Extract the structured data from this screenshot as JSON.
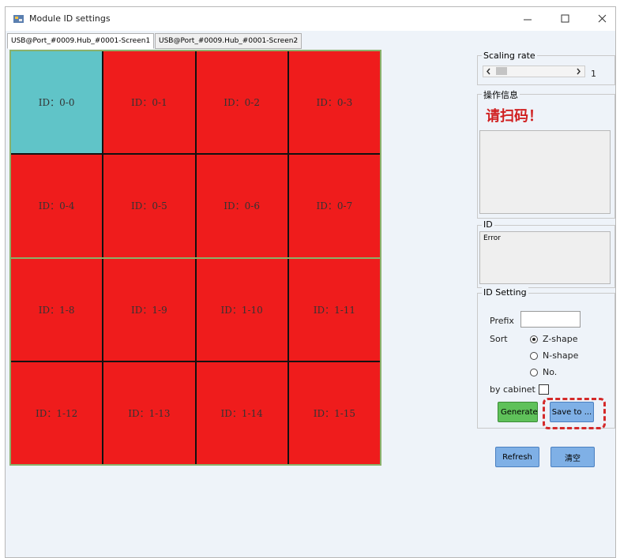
{
  "window": {
    "title": "Module ID settings"
  },
  "tabs": {
    "items": [
      "USB@Port_#0009.Hub_#0001-Screen1",
      "USB@Port_#0009.Hub_#0001-Screen2"
    ],
    "active": 0
  },
  "grid": {
    "columns": 4,
    "selected_cell": 0,
    "cells": [
      "ID：0-0",
      "ID：0-1",
      "ID：0-2",
      "ID：0-3",
      "ID：0-4",
      "ID：0-5",
      "ID：0-6",
      "ID：0-7",
      "ID：1-8",
      "ID：1-9",
      "ID：1-10",
      "ID：1-11",
      "ID：1-12",
      "ID：1-13",
      "ID：1-14",
      "ID：1-15"
    ]
  },
  "scaling_rate": {
    "label": "Scaling rate",
    "value": 1
  },
  "operation_info": {
    "label": "操作信息",
    "message": "请扫码！"
  },
  "id_panel": {
    "label": "ID",
    "text": "Error"
  },
  "id_setting": {
    "label": "ID Setting",
    "prefix_label": "Prefix",
    "sort_label": "Sort",
    "sort_options": [
      "Z-shape",
      "N-shape",
      "No."
    ],
    "sort_selected": 0,
    "by_cabinet_label": "by cabinet",
    "generate": "Generate",
    "save_to": "Save to ..."
  },
  "bottom_buttons": {
    "refresh": "Refresh",
    "clear": "清空"
  }
}
